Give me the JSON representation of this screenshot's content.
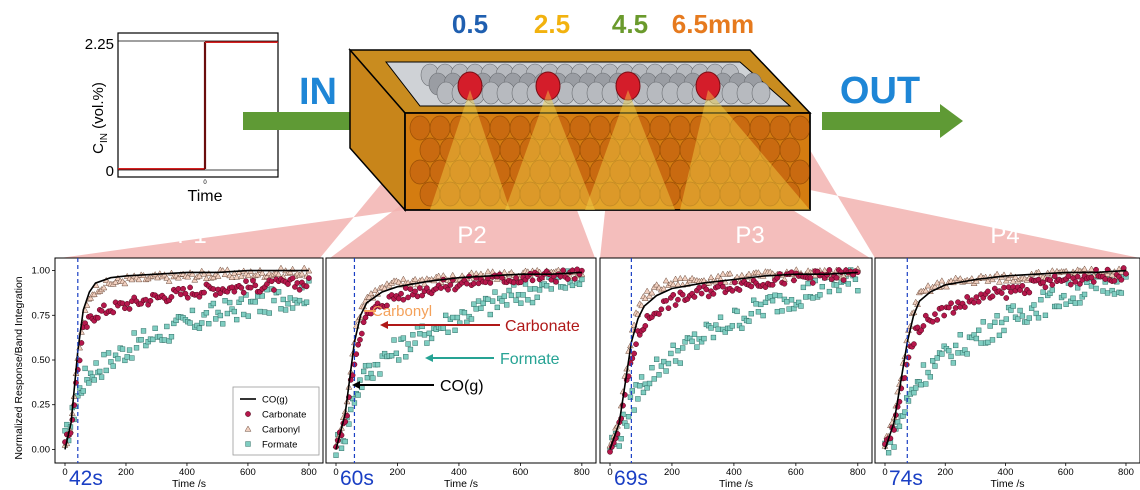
{
  "top": {
    "positions": [
      {
        "label": "0.5",
        "color": "#1f5fb0"
      },
      {
        "label": "2.5",
        "color": "#f2b20f"
      },
      {
        "label": "4.5",
        "color": "#6a9a2c"
      },
      {
        "label": "6.5mm",
        "color": "#e67a1e"
      }
    ],
    "in_label": "IN",
    "out_label": "OUT",
    "arrow_color": "#5f9a35",
    "io_color": "#1e86d6",
    "reactor_color": "#d98a12",
    "pellet_color": "#d41d2a",
    "fan_color": "#f2b3b0",
    "inlet": {
      "ylabel_main": "C",
      "ylabel_sub": "IN",
      "ylabel_rest": " (vol.%)",
      "tick_high": "2.25",
      "tick_low": "0",
      "xtick": "0",
      "xlabel": "Time"
    }
  },
  "ylabel": "Normalized Response/Band Integration",
  "panels": [
    {
      "label": "P1",
      "delay": "42s"
    },
    {
      "label": "P2",
      "delay": "60s"
    },
    {
      "label": "P3",
      "delay": "69s"
    },
    {
      "label": "P4",
      "delay": "74s"
    }
  ],
  "legend": {
    "items": [
      {
        "label": "CO(g)",
        "kind": "line"
      },
      {
        "label": "Carbonate",
        "kind": "circle"
      },
      {
        "label": "Carbonyl",
        "kind": "triangle"
      },
      {
        "label": "Formate",
        "kind": "square"
      }
    ]
  },
  "annotations": [
    {
      "label": "Carbonyl",
      "color": "#f4a15a"
    },
    {
      "label": "Carbonate",
      "color": "#b01818"
    },
    {
      "label": "Formate",
      "color": "#26a394"
    },
    {
      "label": "CO(g)",
      "color": "#000000"
    }
  ],
  "colors": {
    "carbonate": "#b5174c",
    "carbonyl": "#f1d0c0",
    "formate": "#7fcdc1",
    "delay_line": "#1a3fc4",
    "delay_text": "#1a3fc4"
  },
  "chart_data": [
    {
      "type": "scatter",
      "panel": "P1",
      "xlabel": "Time /s",
      "ylabel": "Normalized Response/Band Integration",
      "xlim": [
        0,
        820
      ],
      "ylim": [
        -0.02,
        1.02
      ],
      "xticks": [
        0,
        200,
        400,
        600,
        800
      ],
      "yticks": [
        0.0,
        0.25,
        0.5,
        0.75,
        1.0
      ],
      "delay_s": 42,
      "series": [
        {
          "name": "CO(g)",
          "kind": "line",
          "x": [
            0,
            20,
            42,
            60,
            80,
            100,
            150,
            200,
            300,
            400,
            500,
            600,
            700,
            800
          ],
          "y": [
            0.0,
            0.15,
            0.55,
            0.78,
            0.88,
            0.93,
            0.96,
            0.97,
            0.98,
            0.99,
            0.99,
            1.0,
            1.0,
            1.0
          ]
        },
        {
          "name": "Carbonate",
          "kind": "circle",
          "x": [
            0,
            20,
            42,
            60,
            80,
            100,
            150,
            200,
            300,
            400,
            500,
            600,
            700,
            800
          ],
          "y": [
            0.02,
            0.12,
            0.45,
            0.66,
            0.72,
            0.76,
            0.79,
            0.81,
            0.85,
            0.88,
            0.9,
            0.91,
            0.92,
            0.93
          ]
        },
        {
          "name": "Carbonyl",
          "kind": "triangle",
          "x": [
            0,
            20,
            42,
            60,
            80,
            100,
            150,
            200,
            300,
            400,
            500,
            600,
            700,
            800
          ],
          "y": [
            0.02,
            0.14,
            0.5,
            0.72,
            0.85,
            0.9,
            0.93,
            0.95,
            0.96,
            0.97,
            0.98,
            0.98,
            0.99,
            0.99
          ]
        },
        {
          "name": "Formate",
          "kind": "square",
          "x": [
            0,
            20,
            42,
            60,
            80,
            100,
            150,
            200,
            300,
            400,
            500,
            600,
            700,
            800
          ],
          "y": [
            0.05,
            0.15,
            0.3,
            0.38,
            0.42,
            0.45,
            0.5,
            0.56,
            0.64,
            0.7,
            0.76,
            0.8,
            0.84,
            0.88
          ]
        }
      ]
    },
    {
      "type": "scatter",
      "panel": "P2",
      "xlabel": "Time /s",
      "xlim": [
        0,
        820
      ],
      "ylim": [
        -0.02,
        1.02
      ],
      "xticks": [
        0,
        200,
        400,
        600,
        800
      ],
      "delay_s": 60,
      "series": [
        {
          "name": "CO(g)",
          "kind": "line",
          "x": [
            0,
            30,
            60,
            80,
            100,
            150,
            200,
            300,
            400,
            500,
            600,
            700,
            800
          ],
          "y": [
            0.0,
            0.2,
            0.6,
            0.75,
            0.82,
            0.88,
            0.91,
            0.94,
            0.96,
            0.97,
            0.98,
            0.98,
            0.99
          ]
        },
        {
          "name": "Carbonate",
          "kind": "circle",
          "x": [
            0,
            30,
            60,
            80,
            100,
            150,
            200,
            300,
            400,
            500,
            600,
            700,
            800
          ],
          "y": [
            0.02,
            0.15,
            0.5,
            0.66,
            0.74,
            0.82,
            0.86,
            0.9,
            0.93,
            0.95,
            0.96,
            0.97,
            0.98
          ]
        },
        {
          "name": "Carbonyl",
          "kind": "triangle",
          "x": [
            0,
            30,
            60,
            80,
            100,
            150,
            200,
            300,
            400,
            500,
            600,
            700,
            800
          ],
          "y": [
            0.02,
            0.2,
            0.62,
            0.78,
            0.85,
            0.9,
            0.93,
            0.95,
            0.96,
            0.97,
            0.98,
            0.98,
            0.99
          ]
        },
        {
          "name": "Formate",
          "kind": "square",
          "x": [
            0,
            30,
            60,
            80,
            100,
            150,
            200,
            300,
            400,
            500,
            600,
            700,
            800
          ],
          "y": [
            0.02,
            0.1,
            0.3,
            0.38,
            0.43,
            0.5,
            0.56,
            0.66,
            0.74,
            0.81,
            0.87,
            0.92,
            0.95
          ]
        }
      ]
    },
    {
      "type": "scatter",
      "panel": "P3",
      "xlabel": "Time /s",
      "xlim": [
        0,
        820
      ],
      "ylim": [
        -0.02,
        1.02
      ],
      "xticks": [
        0,
        200,
        400,
        600,
        800
      ],
      "delay_s": 69,
      "series": [
        {
          "name": "CO(g)",
          "kind": "line",
          "x": [
            0,
            30,
            69,
            90,
            110,
            150,
            200,
            300,
            400,
            500,
            600,
            700,
            800
          ],
          "y": [
            0.0,
            0.15,
            0.6,
            0.73,
            0.8,
            0.86,
            0.9,
            0.93,
            0.95,
            0.97,
            0.98,
            0.98,
            0.99
          ]
        },
        {
          "name": "Carbonate",
          "kind": "circle",
          "x": [
            0,
            30,
            69,
            90,
            110,
            150,
            200,
            300,
            400,
            500,
            600,
            700,
            800
          ],
          "y": [
            0.02,
            0.12,
            0.5,
            0.63,
            0.7,
            0.78,
            0.83,
            0.88,
            0.92,
            0.94,
            0.96,
            0.97,
            0.98
          ]
        },
        {
          "name": "Carbonyl",
          "kind": "triangle",
          "x": [
            0,
            30,
            69,
            90,
            110,
            150,
            200,
            300,
            400,
            500,
            600,
            700,
            800
          ],
          "y": [
            0.02,
            0.18,
            0.64,
            0.78,
            0.85,
            0.9,
            0.93,
            0.95,
            0.96,
            0.97,
            0.98,
            0.98,
            0.99
          ]
        },
        {
          "name": "Formate",
          "kind": "square",
          "x": [
            0,
            30,
            69,
            90,
            110,
            150,
            200,
            300,
            400,
            500,
            600,
            700,
            800
          ],
          "y": [
            0.02,
            0.08,
            0.25,
            0.33,
            0.38,
            0.45,
            0.52,
            0.63,
            0.72,
            0.8,
            0.86,
            0.91,
            0.95
          ]
        }
      ]
    },
    {
      "type": "scatter",
      "panel": "P4",
      "xlabel": "Time /s",
      "xlim": [
        0,
        820
      ],
      "ylim": [
        -0.02,
        1.02
      ],
      "xticks": [
        0,
        200,
        400,
        600,
        800
      ],
      "delay_s": 74,
      "series": [
        {
          "name": "CO(g)",
          "kind": "line",
          "x": [
            0,
            30,
            74,
            95,
            115,
            150,
            200,
            300,
            400,
            500,
            600,
            700,
            800
          ],
          "y": [
            0.0,
            0.15,
            0.6,
            0.75,
            0.83,
            0.88,
            0.92,
            0.95,
            0.97,
            0.98,
            0.99,
            0.99,
            1.0
          ]
        },
        {
          "name": "Carbonate",
          "kind": "circle",
          "x": [
            0,
            30,
            74,
            95,
            115,
            150,
            200,
            300,
            400,
            500,
            600,
            700,
            800
          ],
          "y": [
            0.02,
            0.12,
            0.5,
            0.62,
            0.69,
            0.74,
            0.78,
            0.84,
            0.88,
            0.92,
            0.95,
            0.97,
            0.98
          ]
        },
        {
          "name": "Carbonyl",
          "kind": "triangle",
          "x": [
            0,
            30,
            74,
            95,
            115,
            150,
            200,
            300,
            400,
            500,
            600,
            700,
            800
          ],
          "y": [
            0.02,
            0.18,
            0.62,
            0.78,
            0.86,
            0.9,
            0.93,
            0.95,
            0.96,
            0.97,
            0.98,
            0.99,
            0.99
          ]
        },
        {
          "name": "Formate",
          "kind": "square",
          "x": [
            0,
            30,
            74,
            95,
            115,
            150,
            200,
            300,
            400,
            500,
            600,
            700,
            800
          ],
          "y": [
            0.02,
            0.08,
            0.26,
            0.34,
            0.4,
            0.46,
            0.52,
            0.63,
            0.72,
            0.8,
            0.86,
            0.91,
            0.95
          ]
        }
      ]
    }
  ]
}
